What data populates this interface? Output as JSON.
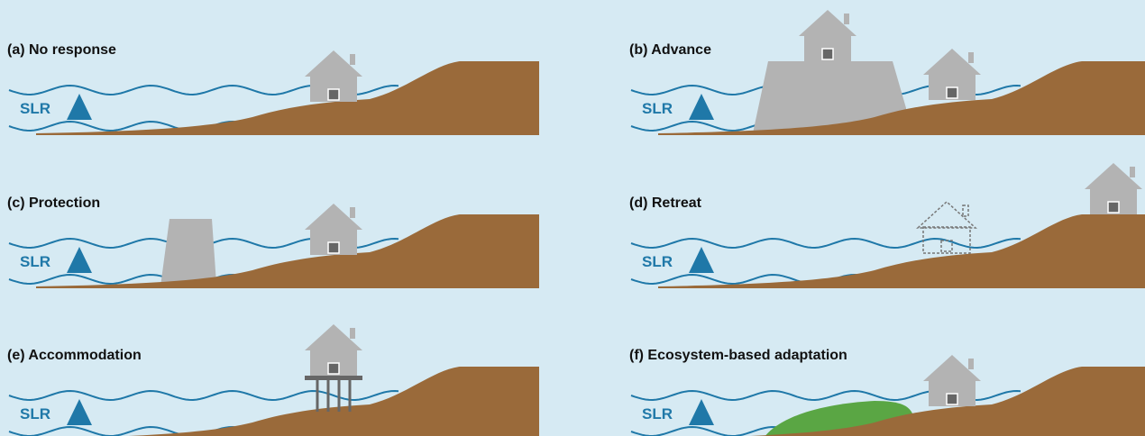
{
  "panels": [
    {
      "title": "(a) No response",
      "label": "SLR"
    },
    {
      "title": "(b) Advance",
      "label": "SLR"
    },
    {
      "title": "(c) Protection",
      "label": "SLR"
    },
    {
      "title": "(d) Retreat",
      "label": "SLR"
    },
    {
      "title": "(e) Accommodation",
      "label": "SLR"
    },
    {
      "title": "(f) Ecosystem-based adaptation",
      "label": "SLR"
    }
  ]
}
